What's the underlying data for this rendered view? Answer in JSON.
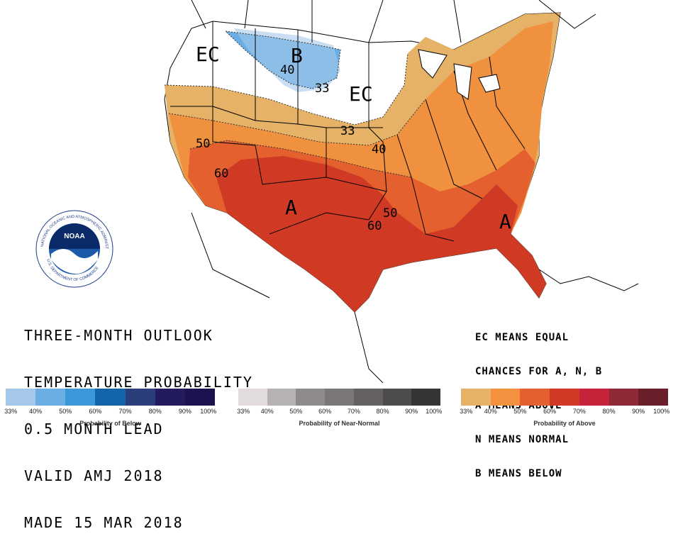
{
  "title_lines": [
    "THREE-MONTH OUTLOOK",
    "TEMPERATURE PROBABILITY",
    "0.5 MONTH LEAD",
    "VALID AMJ 2018",
    "MADE 15 MAR 2018"
  ],
  "legend_lines": [
    "EC MEANS EQUAL",
    "CHANCES FOR A, N, B",
    "A MEANS ABOVE",
    "N MEANS NORMAL",
    "B MEANS BELOW"
  ],
  "logo": {
    "text": "NOAA",
    "ring_text": "NATIONAL OCEANIC AND ATMOSPHERIC ADMINISTRATION",
    "bottom_text": "U.S. DEPARTMENT OF COMMERCE"
  },
  "map_labels": {
    "ec_west": "EC",
    "ec_central": "EC",
    "b_label": "B",
    "a_sw": "A",
    "a_se": "A",
    "c40_north": "40",
    "c33_north": "33",
    "c33_central": "33",
    "c40_central": "40",
    "c50_west": "50",
    "c60_west": "60",
    "c50_south": "50",
    "c60_south": "60"
  },
  "colorbars": {
    "below": {
      "title": "Probability of Below",
      "ticks": [
        "33%",
        "40%",
        "50%",
        "60%",
        "70%",
        "80%",
        "90%",
        "100%"
      ],
      "colors": [
        "#a5c8ea",
        "#6aaee5",
        "#3a98d8",
        "#1364a8",
        "#2b3d7a",
        "#221b5e",
        "#1c1250"
      ]
    },
    "normal": {
      "title": "Probability of Near-Normal",
      "ticks": [
        "33%",
        "40%",
        "50%",
        "60%",
        "70%",
        "80%",
        "90%",
        "100%"
      ],
      "colors": [
        "#e2dcdc",
        "#b7b2b2",
        "#8f8b8b",
        "#7b7777",
        "#656161",
        "#4e4b4b",
        "#363434"
      ]
    },
    "above": {
      "title": "Probability of Above",
      "ticks": [
        "33%",
        "40%",
        "50%",
        "60%",
        "70%",
        "80%",
        "90%",
        "100%"
      ],
      "colors": [
        "#e5b268",
        "#f4913f",
        "#e5602f",
        "#d03a24",
        "#c4233a",
        "#8e2a37",
        "#6a1e2a"
      ]
    }
  }
}
